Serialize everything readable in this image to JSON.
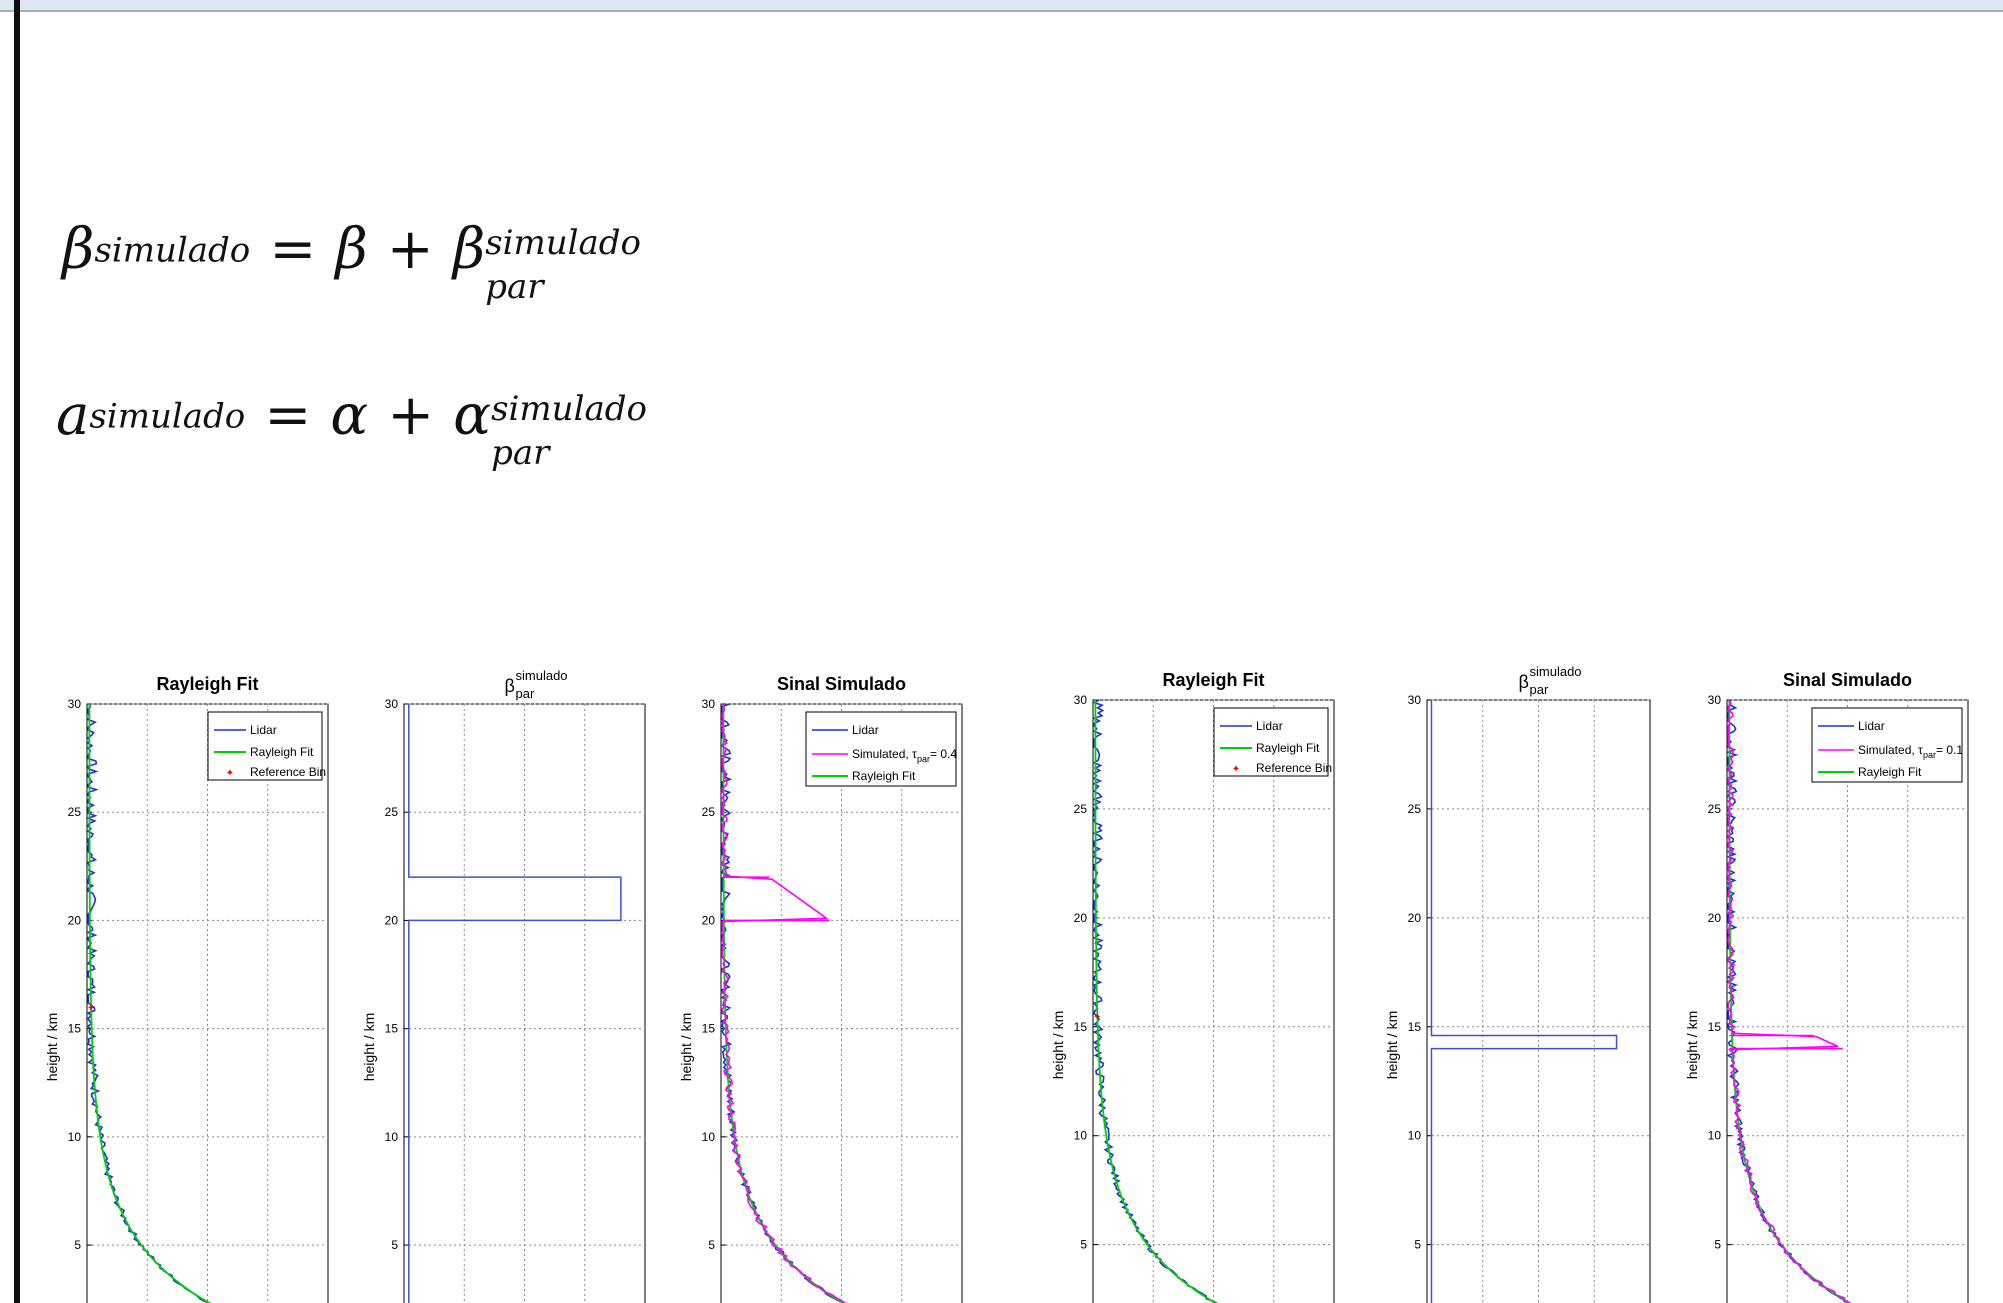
{
  "equations": {
    "eq1": {
      "lhs_base": "β",
      "lhs_sup": "simulado",
      "equals": "=",
      "term1": "β",
      "plus": "+",
      "term2_base": "β",
      "term2_sup": "simulado",
      "term2_sub": "par"
    },
    "eq2": {
      "lhs_base": "a",
      "lhs_sup": "simulado",
      "equals": "=",
      "term1": "α",
      "plus": "+",
      "term2_base": "α",
      "term2_sup": "simulado",
      "term2_sub": "par"
    }
  },
  "colors": {
    "lidar": "#1f2fd6",
    "rayleigh": "#00d000",
    "simulated": "#ff00ff",
    "reference": "#ff0000",
    "profile": "#3b4fd8"
  },
  "chart_data": [
    {
      "type": "line",
      "group": 1,
      "title": "Rayleigh Fit",
      "ylabel": "height / km",
      "yticks": [
        5,
        10,
        15,
        20,
        25,
        30
      ],
      "ylim": [
        2,
        30
      ],
      "legend": [
        "Lidar",
        "Rayleigh Fit",
        "Reference Bin"
      ],
      "reference_height": 16,
      "series": [
        {
          "name": "Lidar"
        },
        {
          "name": "Rayleigh Fit"
        }
      ]
    },
    {
      "type": "line",
      "group": 1,
      "title_base": "β",
      "title_sup": "simulado",
      "title_sub": "par",
      "ylabel": "height / km",
      "yticks": [
        5,
        10,
        15,
        20,
        25,
        30
      ],
      "ylim": [
        2,
        30
      ],
      "layer": {
        "bottom": 20,
        "top": 22,
        "x": 0.9
      }
    },
    {
      "type": "line",
      "group": 1,
      "title": "Sinal Simulado",
      "ylabel": "height / km",
      "yticks": [
        5,
        10,
        15,
        20,
        25,
        30
      ],
      "ylim": [
        2,
        30
      ],
      "legend_a": "Lidar",
      "legend_b_pre": "Simulated, τ",
      "legend_b_sub": "par",
      "legend_b_post": " = 0.4",
      "legend_c": "Rayleigh Fit",
      "layer": {
        "bottom": 20,
        "top": 22,
        "x_top": 0.2,
        "x_bottom": 0.45
      }
    },
    {
      "type": "line",
      "group": 2,
      "title": "Rayleigh Fit",
      "ylabel": "height / km",
      "yticks": [
        5,
        10,
        15,
        20,
        25,
        30
      ],
      "ylim": [
        2,
        30
      ],
      "legend": [
        "Lidar",
        "Rayleigh Fit",
        "Reference Bin"
      ],
      "reference_height": 15.5,
      "series": [
        {
          "name": "Lidar"
        },
        {
          "name": "Rayleigh Fit"
        }
      ]
    },
    {
      "type": "line",
      "group": 2,
      "title_base": "β",
      "title_sup": "simulado",
      "title_sub": "par",
      "ylabel": "height / km",
      "yticks": [
        5,
        10,
        15,
        20,
        25,
        30
      ],
      "ylim": [
        2,
        30
      ],
      "layer": {
        "bottom": 14,
        "top": 14.6,
        "x": 0.85
      }
    },
    {
      "type": "line",
      "group": 2,
      "title": "Sinal Simulado",
      "ylabel": "height / km",
      "yticks": [
        5,
        10,
        15,
        20,
        25,
        30
      ],
      "ylim": [
        2,
        30
      ],
      "legend_a": "Lidar",
      "legend_b_pre": "Simulated, τ",
      "legend_b_sub": "par",
      "legend_b_post": " = 0.1",
      "legend_c": "Rayleigh Fit",
      "layer": {
        "bottom": 14,
        "top": 14.6,
        "x_top": 0.36,
        "x_bottom": 0.48
      }
    }
  ]
}
